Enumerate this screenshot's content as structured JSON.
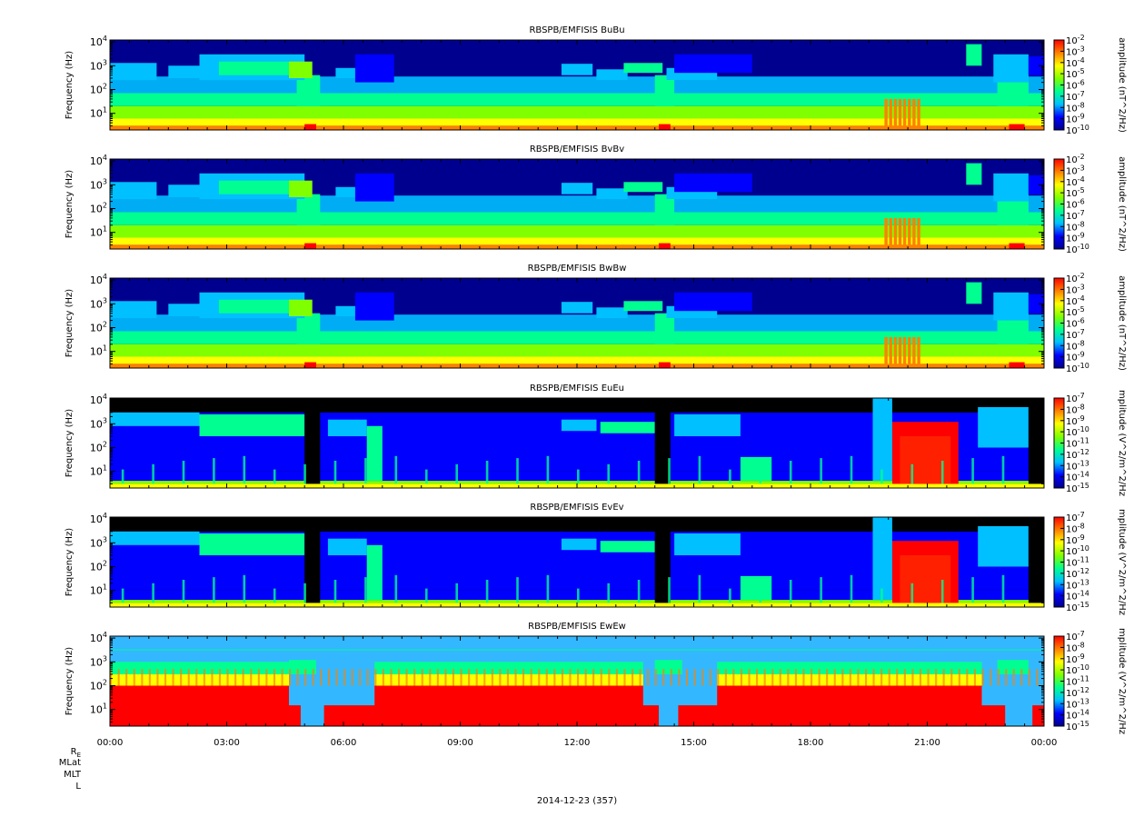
{
  "chart_data": {
    "type": "heatmap",
    "xlabel": "2014-12-23 (357)",
    "x_ticks": [
      "00:00",
      "03:00",
      "06:00",
      "09:00",
      "12:00",
      "15:00",
      "18:00",
      "21:00",
      "00:00"
    ],
    "xlim_hours": [
      0,
      24
    ],
    "ephemeris_labels": [
      "R_E",
      "MLat",
      "MLT",
      "L"
    ],
    "ephemeris_re_main": "R",
    "ephemeris_re_sub": "E",
    "ylabel": "Frequency (Hz)",
    "ylim_hz": [
      2,
      12000
    ],
    "y_scale": "log",
    "y_ticks": [
      {
        "base": "10",
        "exp": "1",
        "value": 10
      },
      {
        "base": "10",
        "exp": "2",
        "value": 100
      },
      {
        "base": "10",
        "exp": "3",
        "value": 1000
      },
      {
        "base": "10",
        "exp": "4",
        "value": 10000
      }
    ],
    "colormap": [
      "#00008f",
      "#0000ff",
      "#00c0ff",
      "#00ff90",
      "#80ff00",
      "#ffff00",
      "#ff8000",
      "#ff0000"
    ],
    "panels": [
      {
        "title": "RBSPB/EMFISIS  BuBu",
        "colorbar_label": "amplitude (nT^2/Hz)",
        "clim_exp": [
          -10,
          -2
        ],
        "kind": "b",
        "background": "#00008f"
      },
      {
        "title": "RBSPB/EMFISIS  BvBv",
        "colorbar_label": "amplitude (nT^2/Hz)",
        "clim_exp": [
          -10,
          -2
        ],
        "kind": "b",
        "background": "#00008f"
      },
      {
        "title": "RBSPB/EMFISIS  BwBw",
        "colorbar_label": "amplitude (nT^2/Hz)",
        "clim_exp": [
          -10,
          -2
        ],
        "kind": "b",
        "background": "#00008f"
      },
      {
        "title": "RBSPB/EMFISIS  EuEu",
        "colorbar_label": "mplitude (V^2/m^2/Hz",
        "clim_exp": [
          -15,
          -7
        ],
        "kind": "e",
        "background": "#000000"
      },
      {
        "title": "RBSPB/EMFISIS  EvEv",
        "colorbar_label": "mplitude (V^2/m^2/Hz",
        "clim_exp": [
          -15,
          -7
        ],
        "kind": "e",
        "background": "#000000"
      },
      {
        "title": "RBSPB/EMFISIS  EwEw",
        "colorbar_label": "mplitude (V^2/m^2/Hz",
        "clim_exp": [
          -15,
          -7
        ],
        "kind": "ew",
        "background": "#33b8ff"
      }
    ]
  }
}
